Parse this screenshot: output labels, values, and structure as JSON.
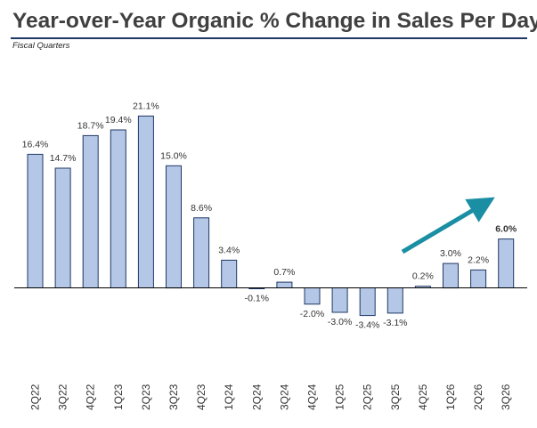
{
  "title": "Year-over-Year Organic % Change in Sales Per Day",
  "subtitle": "Fiscal Quarters",
  "colors": {
    "bar_fill": "#b4c7e7",
    "bar_stroke": "#1f3864",
    "axis": "#000000",
    "label": "#333333",
    "arrow": "#1a8fa3"
  },
  "chart_data": {
    "type": "bar",
    "categories": [
      "2Q22",
      "3Q22",
      "4Q22",
      "1Q23",
      "2Q23",
      "3Q23",
      "4Q23",
      "1Q24",
      "2Q24",
      "3Q24",
      "4Q24",
      "1Q25",
      "2Q25",
      "3Q25",
      "4Q25",
      "1Q26",
      "2Q26",
      "3Q26"
    ],
    "values": [
      16.4,
      14.7,
      18.7,
      19.4,
      21.1,
      15.0,
      8.6,
      3.4,
      -0.1,
      0.7,
      -2.0,
      -3.0,
      -3.4,
      -3.1,
      0.2,
      3.0,
      2.2,
      6.0
    ],
    "data_labels": [
      "16.4%",
      "14.7%",
      "18.7%",
      "19.4%",
      "21.1%",
      "15.0%",
      "8.6%",
      "3.4%",
      "-0.1%",
      "0.7%",
      "-2.0%",
      "-3.0%",
      "-3.4%",
      "-3.1%",
      "0.2%",
      "3.0%",
      "2.2%",
      "6.0%"
    ],
    "bold_labels": [
      false,
      false,
      false,
      false,
      false,
      false,
      false,
      false,
      false,
      false,
      false,
      false,
      false,
      false,
      false,
      false,
      false,
      true
    ],
    "xlabel": "",
    "ylabel": "",
    "annotation": "upward trend arrow over last quarters",
    "grid": false,
    "legend": "none"
  }
}
